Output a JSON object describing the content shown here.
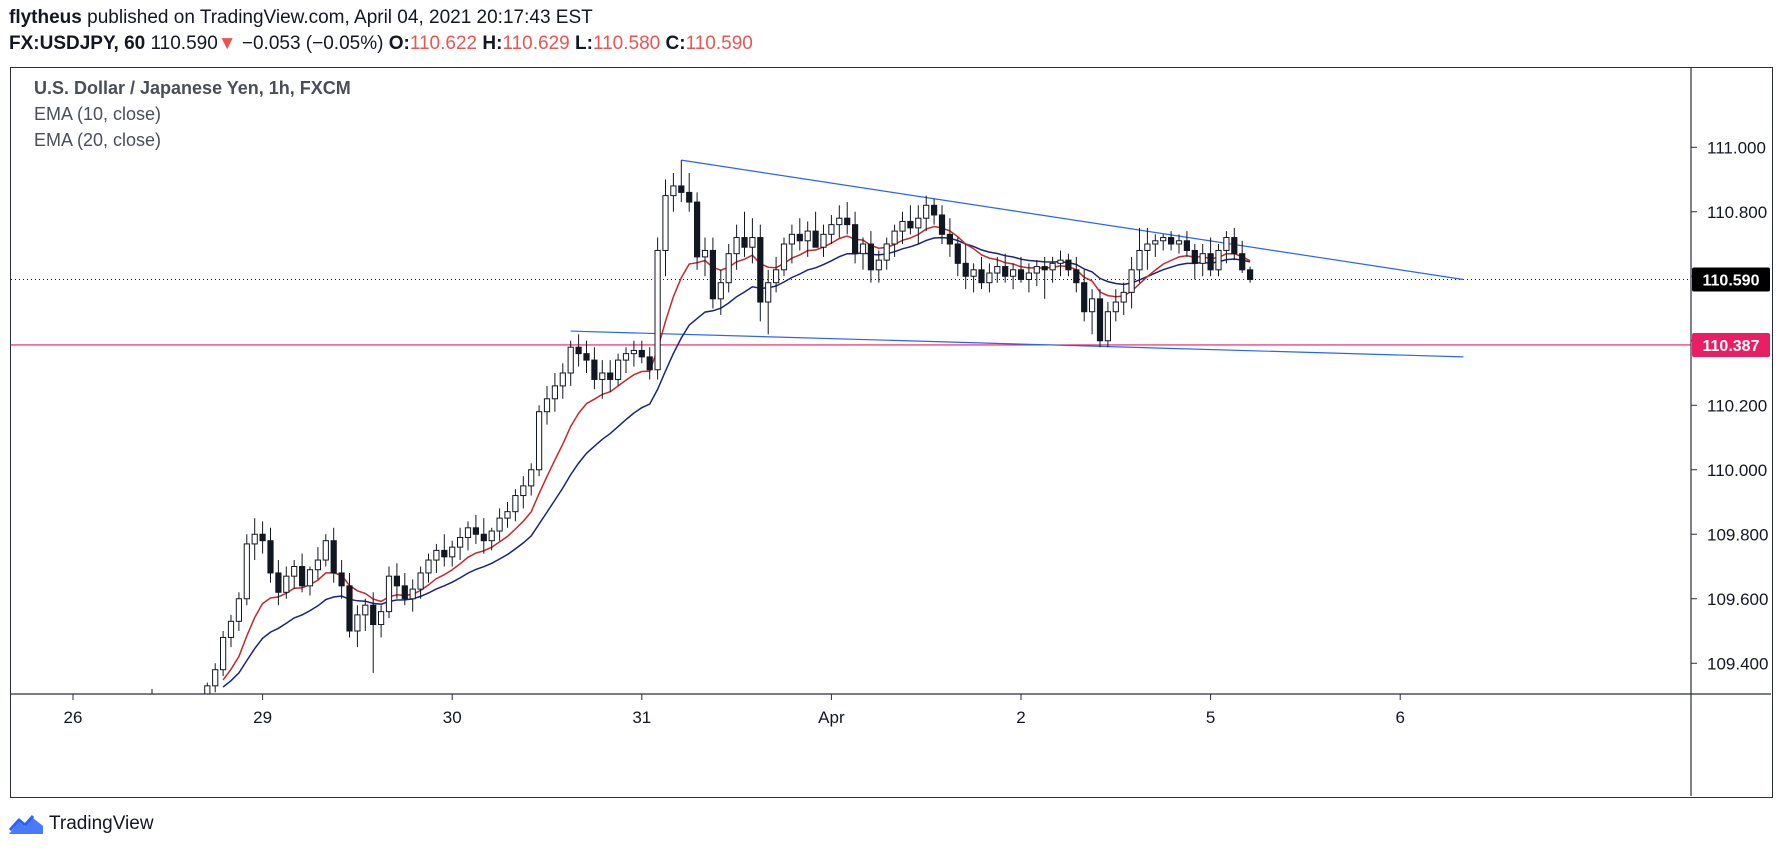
{
  "header": {
    "author": "flytheus",
    "published": "published on TradingView.com, April 04, 2021 20:17:43 EST",
    "symbol": "FX:USDJPY, 60",
    "price": "110.590",
    "change": "−0.053 (−0.05%)",
    "o_label": "O:",
    "o": "110.622",
    "h_label": "H:",
    "h": "110.629",
    "l_label": "L:",
    "l": "110.580",
    "c_label": "C:",
    "c": "110.590"
  },
  "legend": {
    "title": "U.S. Dollar / Japanese Yen, 1h, FXCM",
    "ema10": "EMA (10, close)",
    "ema20": "EMA (20, close)"
  },
  "footer": {
    "brand": "TradingView",
    "logo_icon": "tradingview-logo-icon"
  },
  "colors": {
    "ema10": "#c62828",
    "ema20": "#1a237e",
    "trendline": "#2962ff",
    "support": "#e91e63",
    "price_badge_bg": "#000000",
    "axis_text": "#131722"
  },
  "chart_data": {
    "type": "candlestick",
    "symbol": "USDJPY",
    "interval": "1h",
    "ylim": [
      109.3,
      111.1
    ],
    "y_ticks": [
      "111.000",
      "110.800",
      "110.600",
      "110.400",
      "110.200",
      "110.000",
      "109.800",
      "109.600",
      "109.400"
    ],
    "x_ticks": [
      {
        "label": "26",
        "index": 0
      },
      {
        "label": "29",
        "index": 24
      },
      {
        "label": "30",
        "index": 48
      },
      {
        "label": "31",
        "index": 72
      },
      {
        "label": "Apr",
        "index": 96
      },
      {
        "label": "2",
        "index": 120
      },
      {
        "label": "5",
        "index": 144
      },
      {
        "label": "6",
        "index": 168
      }
    ],
    "x_range": [
      -8,
      176
    ],
    "last_price": 110.59,
    "last_price_label": "110.590",
    "support_price": 110.387,
    "support_price_label": "110.387",
    "trendlines": [
      {
        "name": "upper",
        "points": [
          [
            77,
            110.96
          ],
          [
            176,
            110.59
          ]
        ]
      },
      {
        "name": "lower",
        "points": [
          [
            63,
            110.43
          ],
          [
            176,
            110.35
          ]
        ]
      }
    ],
    "grid": false,
    "candles": [
      [
        10.0,
        109.3,
        109.32,
        109.28,
        109.3
      ],
      [
        17.0,
        109.3,
        109.34,
        109.29,
        109.33
      ],
      [
        18.0,
        109.33,
        109.4,
        109.31,
        109.38
      ],
      [
        19.0,
        109.38,
        109.5,
        109.36,
        109.48
      ],
      [
        20.0,
        109.48,
        109.55,
        109.45,
        109.53
      ],
      [
        21.0,
        109.53,
        109.62,
        109.5,
        109.6
      ],
      [
        22.0,
        109.6,
        109.8,
        109.58,
        109.77
      ],
      [
        23.0,
        109.77,
        109.85,
        109.72,
        109.8
      ],
      [
        24.0,
        109.8,
        109.84,
        109.74,
        109.78
      ],
      [
        25.0,
        109.78,
        109.82,
        109.65,
        109.68
      ],
      [
        26.0,
        109.68,
        109.72,
        109.58,
        109.62
      ],
      [
        27.0,
        109.62,
        109.7,
        109.6,
        109.67
      ],
      [
        28.0,
        109.67,
        109.72,
        109.63,
        109.7
      ],
      [
        29.0,
        109.7,
        109.74,
        109.62,
        109.64
      ],
      [
        30.0,
        109.64,
        109.7,
        109.61,
        109.69
      ],
      [
        31.0,
        109.69,
        109.76,
        109.66,
        109.72
      ],
      [
        32.0,
        109.72,
        109.8,
        109.7,
        109.78
      ],
      [
        33.0,
        109.78,
        109.82,
        109.65,
        109.68
      ],
      [
        34.0,
        109.68,
        109.72,
        109.6,
        109.64
      ],
      [
        35.0,
        109.64,
        109.68,
        109.48,
        109.5
      ],
      [
        36.0,
        109.5,
        109.58,
        109.45,
        109.55
      ],
      [
        37.0,
        109.55,
        109.6,
        109.5,
        109.58
      ],
      [
        38.0,
        109.58,
        109.62,
        109.37,
        109.52
      ],
      [
        39.0,
        109.52,
        109.58,
        109.48,
        109.56
      ],
      [
        40.0,
        109.56,
        109.7,
        109.54,
        109.67
      ],
      [
        41.0,
        109.67,
        109.71,
        109.6,
        109.64
      ],
      [
        42.0,
        109.64,
        109.68,
        109.58,
        109.6
      ],
      [
        43.0,
        109.6,
        109.66,
        109.56,
        109.63
      ],
      [
        44.0,
        109.63,
        109.7,
        109.6,
        109.68
      ],
      [
        45.0,
        109.68,
        109.74,
        109.65,
        109.72
      ],
      [
        46.0,
        109.72,
        109.77,
        109.68,
        109.75
      ],
      [
        47.0,
        109.75,
        109.8,
        109.7,
        109.73
      ],
      [
        48.0,
        109.73,
        109.78,
        109.7,
        109.76
      ],
      [
        49.0,
        109.76,
        109.82,
        109.72,
        109.79
      ],
      [
        50.0,
        109.79,
        109.84,
        109.75,
        109.82
      ],
      [
        51.0,
        109.82,
        109.86,
        109.77,
        109.8
      ],
      [
        52.0,
        109.8,
        109.85,
        109.74,
        109.78
      ],
      [
        53.0,
        109.78,
        109.82,
        109.75,
        109.81
      ],
      [
        54.0,
        109.81,
        109.88,
        109.78,
        109.85
      ],
      [
        55.0,
        109.85,
        109.9,
        109.82,
        109.87
      ],
      [
        56.0,
        109.87,
        109.94,
        109.84,
        109.92
      ],
      [
        57.0,
        109.92,
        109.98,
        109.88,
        109.95
      ],
      [
        58.0,
        109.95,
        110.02,
        109.92,
        110.0
      ],
      [
        59.0,
        110.0,
        110.2,
        109.98,
        110.18
      ],
      [
        60.0,
        110.18,
        110.26,
        110.14,
        110.22
      ],
      [
        61.0,
        110.22,
        110.3,
        110.18,
        110.26
      ],
      [
        62.0,
        110.26,
        110.33,
        110.22,
        110.3
      ],
      [
        63.0,
        110.3,
        110.4,
        110.26,
        110.38
      ],
      [
        64.0,
        110.38,
        110.42,
        110.32,
        110.36
      ],
      [
        65.0,
        110.36,
        110.4,
        110.3,
        110.34
      ],
      [
        66.0,
        110.34,
        110.38,
        110.25,
        110.28
      ],
      [
        67.0,
        110.28,
        110.34,
        110.22,
        110.3
      ],
      [
        68.0,
        110.3,
        110.34,
        110.24,
        110.28
      ],
      [
        69.0,
        110.28,
        110.36,
        110.26,
        110.34
      ],
      [
        70.0,
        110.34,
        110.38,
        110.3,
        110.36
      ],
      [
        71.0,
        110.36,
        110.4,
        110.32,
        110.37
      ],
      [
        72.0,
        110.37,
        110.4,
        110.33,
        110.35
      ],
      [
        73.0,
        110.35,
        110.38,
        110.28,
        110.31
      ],
      [
        74.0,
        110.31,
        110.72,
        110.28,
        110.68
      ],
      [
        75.0,
        110.68,
        110.9,
        110.6,
        110.85
      ],
      [
        76.0,
        110.85,
        110.92,
        110.8,
        110.88
      ],
      [
        77.0,
        110.88,
        110.96,
        110.83,
        110.86
      ],
      [
        78.0,
        110.86,
        110.92,
        110.8,
        110.83
      ],
      [
        79.0,
        110.83,
        110.86,
        110.62,
        110.66
      ],
      [
        80.0,
        110.66,
        110.72,
        110.6,
        110.68
      ],
      [
        81.0,
        110.68,
        110.72,
        110.5,
        110.53
      ],
      [
        82.0,
        110.53,
        110.62,
        110.48,
        110.58
      ],
      [
        83.0,
        110.58,
        110.7,
        110.55,
        110.67
      ],
      [
        84.0,
        110.67,
        110.76,
        110.62,
        110.72
      ],
      [
        85.0,
        110.72,
        110.8,
        110.66,
        110.69
      ],
      [
        86.0,
        110.69,
        110.78,
        110.64,
        110.72
      ],
      [
        87.0,
        110.72,
        110.76,
        110.46,
        110.52
      ],
      [
        88.0,
        110.52,
        110.62,
        110.42,
        110.58
      ],
      [
        89.0,
        110.58,
        110.66,
        110.55,
        110.62
      ],
      [
        90.0,
        110.62,
        110.72,
        110.6,
        110.7
      ],
      [
        91.0,
        110.7,
        110.76,
        110.64,
        110.73
      ],
      [
        92.0,
        110.73,
        110.78,
        110.68,
        110.71
      ],
      [
        93.0,
        110.71,
        110.77,
        110.66,
        110.74
      ],
      [
        94.0,
        110.74,
        110.8,
        110.7,
        110.69
      ],
      [
        95.0,
        110.69,
        110.76,
        110.66,
        110.73
      ],
      [
        96.0,
        110.73,
        110.79,
        110.7,
        110.76
      ],
      [
        97.0,
        110.76,
        110.82,
        110.72,
        110.78
      ],
      [
        98.0,
        110.78,
        110.83,
        110.73,
        110.76
      ],
      [
        99.0,
        110.76,
        110.8,
        110.64,
        110.67
      ],
      [
        100.0,
        110.67,
        110.72,
        110.62,
        110.7
      ],
      [
        101.0,
        110.7,
        110.74,
        110.58,
        110.62
      ],
      [
        102.0,
        110.62,
        110.68,
        110.58,
        110.65
      ],
      [
        103.0,
        110.65,
        110.72,
        110.62,
        110.7
      ],
      [
        104.0,
        110.7,
        110.76,
        110.66,
        110.74
      ],
      [
        105.0,
        110.74,
        110.8,
        110.7,
        110.77
      ],
      [
        106.0,
        110.77,
        110.82,
        110.73,
        110.75
      ],
      [
        107.0,
        110.75,
        110.82,
        110.7,
        110.78
      ],
      [
        108.0,
        110.78,
        110.85,
        110.74,
        110.82
      ],
      [
        109.0,
        110.82,
        110.84,
        110.76,
        110.79
      ],
      [
        110.0,
        110.79,
        110.82,
        110.7,
        110.73
      ],
      [
        111.0,
        110.73,
        110.78,
        110.66,
        110.7
      ],
      [
        112.0,
        110.7,
        110.72,
        110.6,
        110.64
      ],
      [
        113.0,
        110.64,
        110.7,
        110.56,
        110.6
      ],
      [
        114.0,
        110.6,
        110.64,
        110.55,
        110.62
      ],
      [
        115.0,
        110.62,
        110.66,
        110.56,
        110.58
      ],
      [
        116.0,
        110.58,
        110.64,
        110.55,
        110.61
      ],
      [
        117.0,
        110.61,
        110.66,
        110.58,
        110.63
      ],
      [
        118.0,
        110.63,
        110.67,
        110.58,
        110.6
      ],
      [
        119.0,
        110.6,
        110.64,
        110.56,
        110.62
      ],
      [
        120.0,
        110.62,
        110.66,
        110.58,
        110.59
      ],
      [
        121.0,
        110.59,
        110.64,
        110.55,
        110.61
      ],
      [
        122.0,
        110.61,
        110.65,
        110.57,
        110.63
      ],
      [
        123.0,
        110.63,
        110.66,
        110.53,
        110.62
      ],
      [
        124.0,
        110.62,
        110.66,
        110.58,
        110.64
      ],
      [
        125.0,
        110.64,
        110.68,
        110.6,
        110.65
      ],
      [
        126.0,
        110.65,
        110.67,
        110.6,
        110.62
      ],
      [
        127.0,
        110.62,
        110.66,
        110.55,
        110.58
      ],
      [
        128.0,
        110.58,
        110.62,
        110.46,
        110.49
      ],
      [
        129.0,
        110.49,
        110.56,
        110.42,
        110.53
      ],
      [
        130.0,
        110.53,
        110.56,
        110.38,
        110.4
      ],
      [
        131.0,
        110.4,
        110.52,
        110.38,
        110.49
      ],
      [
        132.0,
        110.49,
        110.56,
        110.46,
        110.52
      ],
      [
        133.0,
        110.52,
        110.58,
        110.48,
        110.55
      ],
      [
        134.0,
        110.55,
        110.66,
        110.5,
        110.62
      ],
      [
        135.0,
        110.62,
        110.75,
        110.58,
        110.68
      ],
      [
        136.0,
        110.68,
        110.75,
        110.62,
        110.7
      ],
      [
        137.0,
        110.7,
        110.73,
        110.66,
        110.71
      ],
      [
        138.0,
        110.71,
        110.73,
        110.68,
        110.72
      ],
      [
        139.0,
        110.72,
        110.74,
        110.68,
        110.7
      ],
      [
        140.0,
        110.7,
        110.73,
        110.67,
        110.71
      ],
      [
        141.0,
        110.71,
        110.74,
        110.66,
        110.68
      ],
      [
        142.0,
        110.68,
        110.7,
        110.59,
        110.64
      ],
      [
        143.0,
        110.64,
        110.7,
        110.6,
        110.67
      ],
      [
        144.0,
        110.67,
        110.72,
        110.6,
        110.62
      ],
      [
        145.0,
        110.62,
        110.7,
        110.6,
        110.68
      ],
      [
        146.0,
        110.68,
        110.74,
        110.64,
        110.72
      ],
      [
        147.0,
        110.72,
        110.75,
        110.65,
        110.67
      ],
      [
        148.0,
        110.67,
        110.71,
        110.61,
        110.62
      ],
      [
        149.0,
        110.62,
        110.63,
        110.58,
        110.59
      ]
    ]
  }
}
